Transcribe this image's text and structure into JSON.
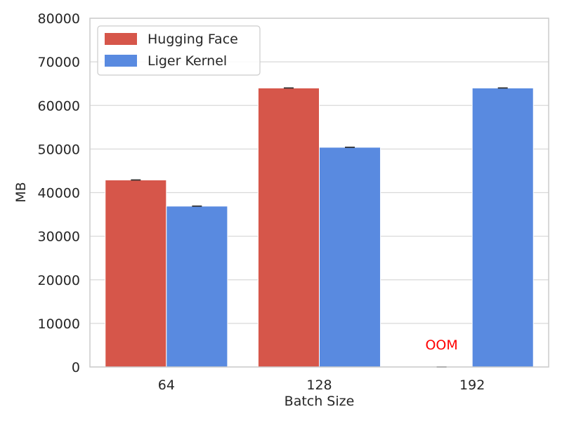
{
  "chart_data": {
    "type": "bar",
    "title": "",
    "xlabel": "Batch Size",
    "ylabel": "MB",
    "ylim": [
      0,
      80000
    ],
    "yticks": [
      "0",
      "10000",
      "20000",
      "30000",
      "40000",
      "50000",
      "60000",
      "70000",
      "80000"
    ],
    "categories": [
      "64",
      "128",
      "192"
    ],
    "series": [
      {
        "name": "Hugging Face",
        "color": "#d6564a",
        "values": [
          42900,
          64000,
          0
        ]
      },
      {
        "name": "Liger Kernel",
        "color": "#598ae0",
        "values": [
          36900,
          50400,
          64000
        ]
      }
    ],
    "annotations": [
      {
        "text": "OOM",
        "category": "192",
        "series": "Hugging Face",
        "color": "#ff0000"
      }
    ],
    "legend_position": "top-left",
    "grid": "horizontal"
  }
}
